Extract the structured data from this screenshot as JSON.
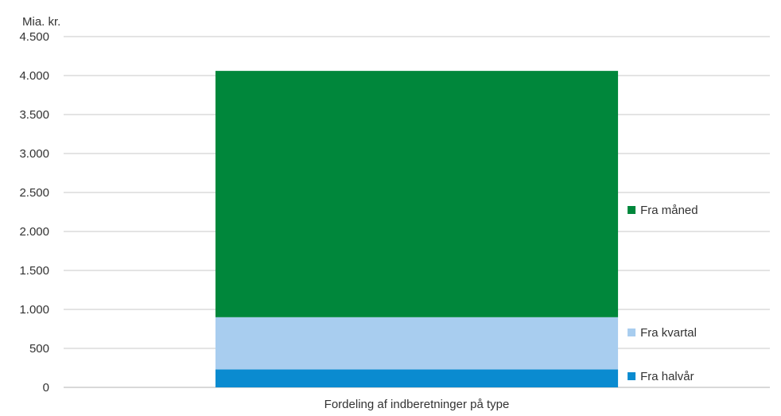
{
  "chart_data": {
    "type": "bar",
    "stacked": true,
    "unit_label": "Mia. kr.",
    "categories": [
      "Fordeling af indberetninger på type"
    ],
    "series": [
      {
        "name": "Fra halvår",
        "values": [
          230
        ],
        "color": "#0a8bd0"
      },
      {
        "name": "Fra kvartal",
        "values": [
          670
        ],
        "color": "#a8cdef"
      },
      {
        "name": "Fra måned",
        "values": [
          3160
        ],
        "color": "#00873b"
      }
    ],
    "ylim": [
      0,
      4500
    ],
    "yticks": [
      0,
      500,
      1000,
      1500,
      2000,
      2500,
      3000,
      3500,
      4000,
      4500
    ],
    "ytick_labels": [
      "0",
      "500",
      "1.000",
      "1.500",
      "2.000",
      "2.500",
      "3.000",
      "3.500",
      "4.000",
      "4.500"
    ],
    "grid": true,
    "legend_position": "right"
  }
}
